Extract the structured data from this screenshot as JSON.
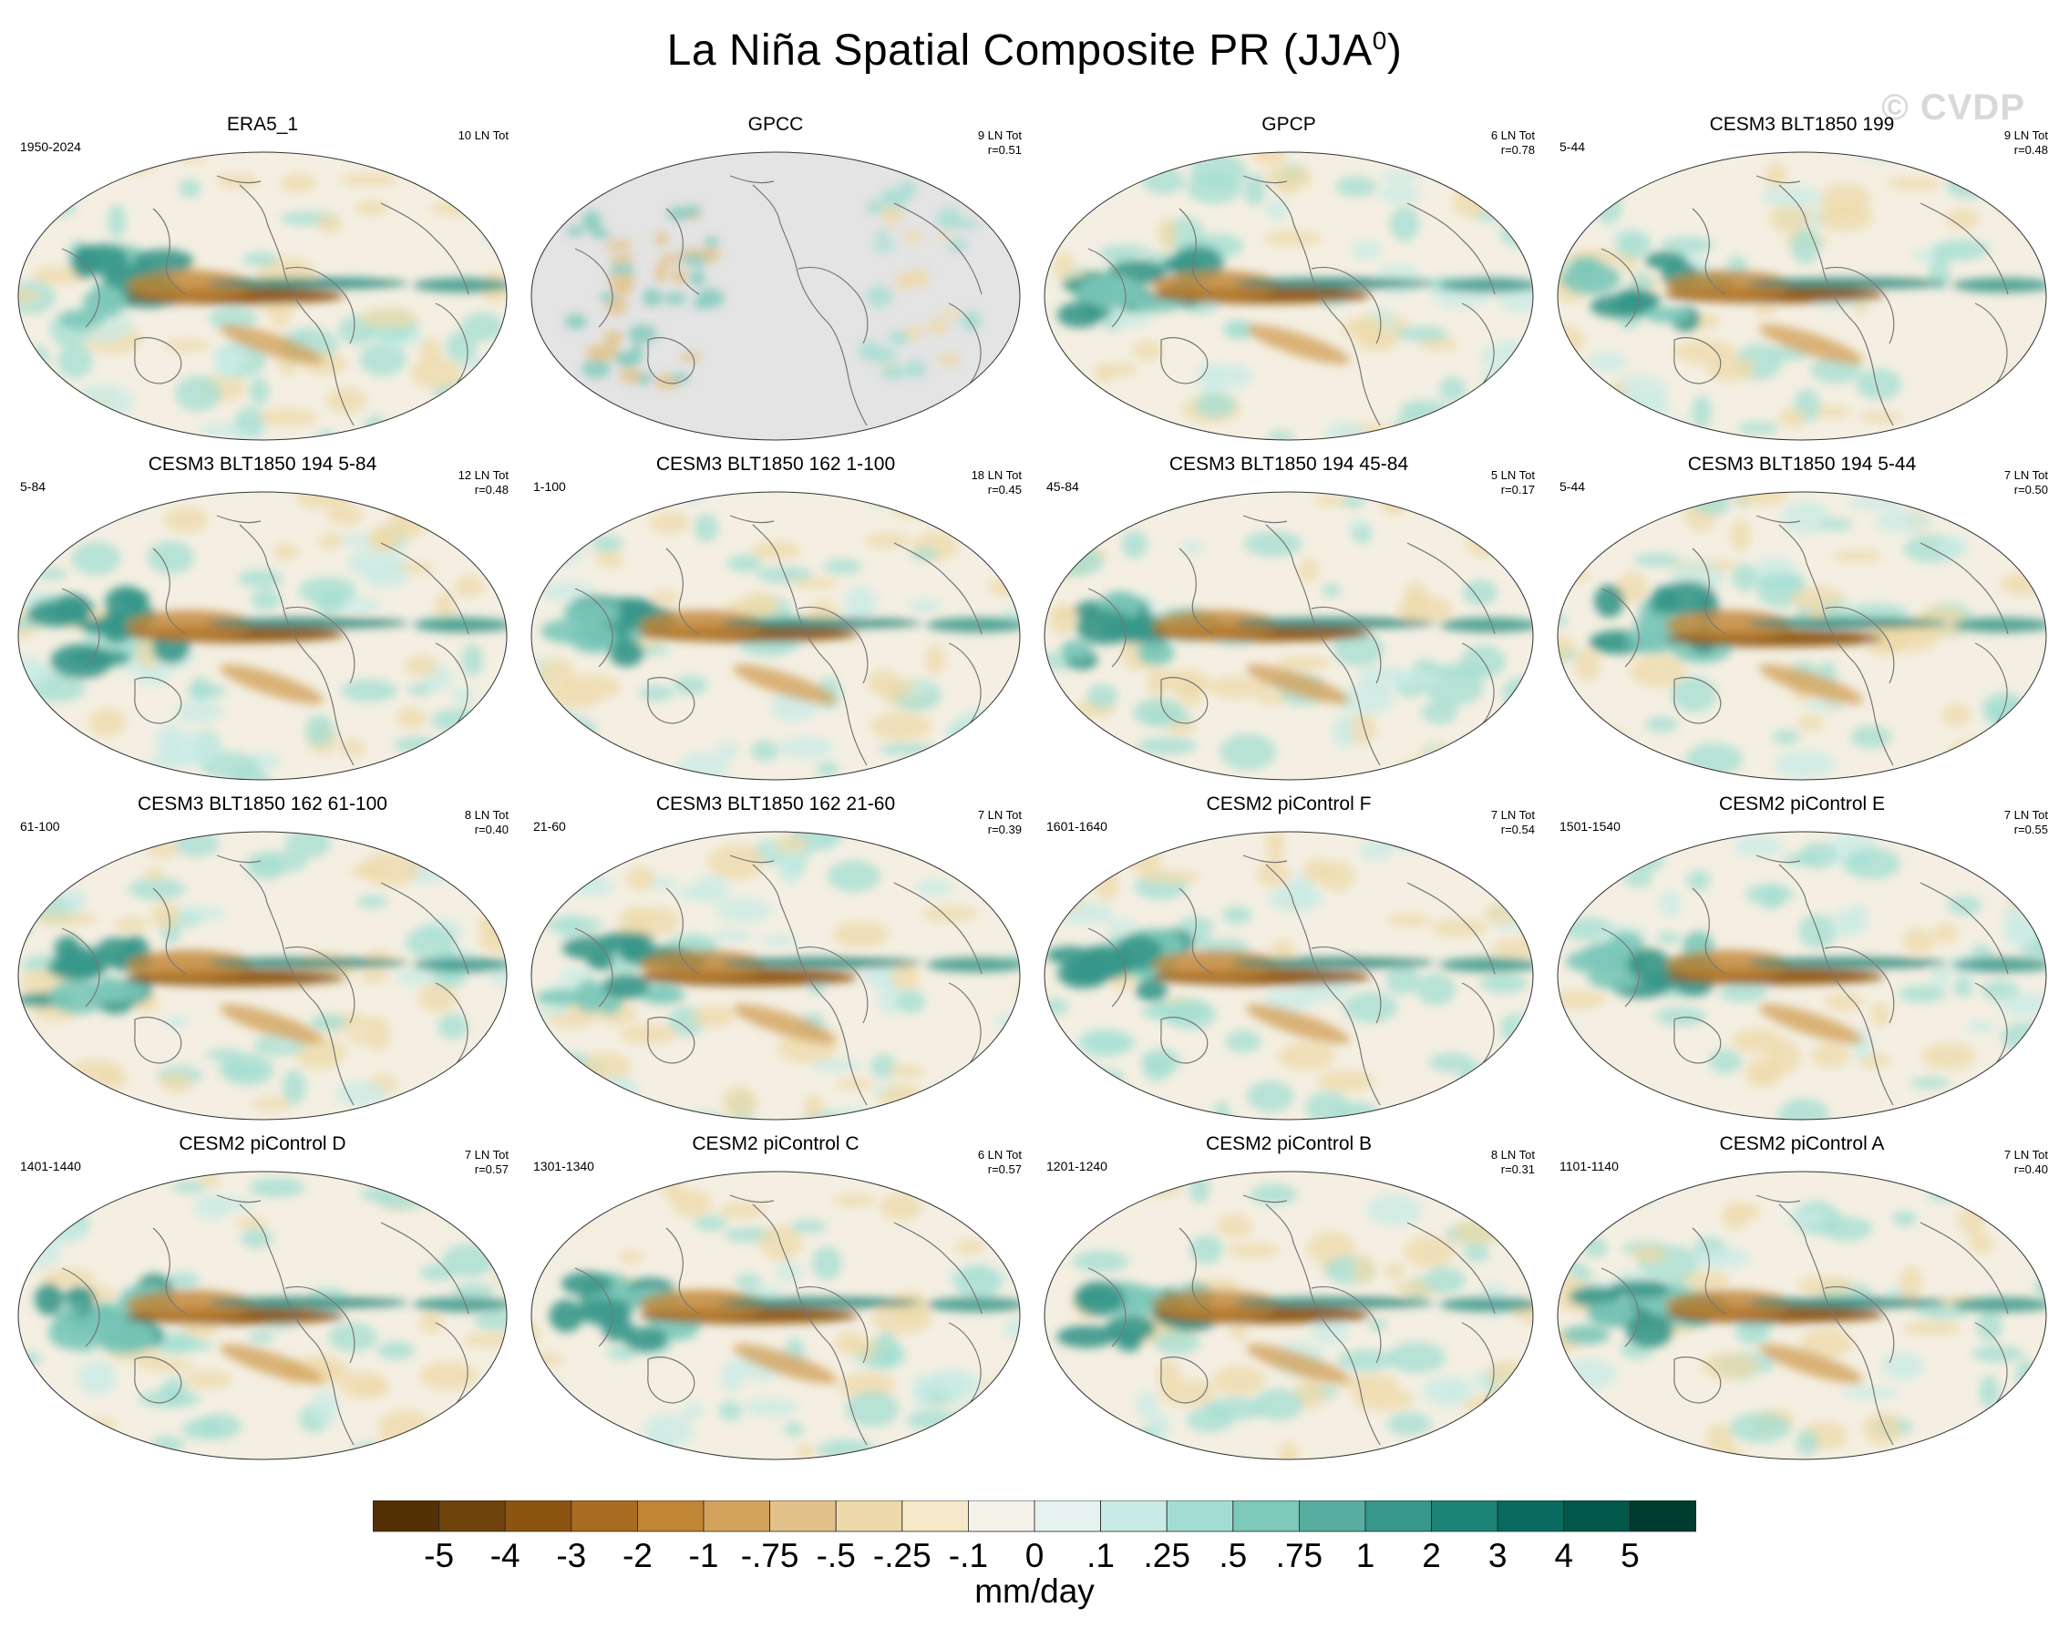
{
  "title": "La Niña Spatial Composite PR (JJA",
  "title_sup": "0",
  "title_close": ")",
  "watermark": "© CVDP",
  "panels": [
    {
      "title": "ERA5_1",
      "left": "1950-2024",
      "right1": "10 LN Tot",
      "right2": "",
      "style": "obs"
    },
    {
      "title": "GPCC",
      "left": "",
      "right1": "9 LN Tot",
      "right2": "r=0.51",
      "style": "gpcc"
    },
    {
      "title": "GPCP",
      "left": "",
      "right1": "6 LN Tot",
      "right2": "r=0.78",
      "style": "obs"
    },
    {
      "title": "CESM3 BLT1850 199",
      "left": "5-44",
      "right1": "9 LN Tot",
      "right2": "r=0.48",
      "style": "model"
    },
    {
      "title": "CESM3 BLT1850 194 5-84",
      "left": "5-84",
      "right1": "12 LN Tot",
      "right2": "r=0.48",
      "style": "model"
    },
    {
      "title": "CESM3 BLT1850 162 1-100",
      "left": "1-100",
      "right1": "18 LN Tot",
      "right2": "r=0.45",
      "style": "model"
    },
    {
      "title": "CESM3 BLT1850 194 45-84",
      "left": "45-84",
      "right1": "5 LN Tot",
      "right2": "r=0.17",
      "style": "model"
    },
    {
      "title": "CESM3 BLT1850 194 5-44",
      "left": "5-44",
      "right1": "7 LN Tot",
      "right2": "r=0.50",
      "style": "model"
    },
    {
      "title": "CESM3 BLT1850 162 61-100",
      "left": "61-100",
      "right1": "8 LN Tot",
      "right2": "r=0.40",
      "style": "model"
    },
    {
      "title": "CESM3 BLT1850 162 21-60",
      "left": "21-60",
      "right1": "7 LN Tot",
      "right2": "r=0.39",
      "style": "model"
    },
    {
      "title": "CESM2 piControl F",
      "left": "1601-1640",
      "right1": "7 LN Tot",
      "right2": "r=0.54",
      "style": "model"
    },
    {
      "title": "CESM2 piControl E",
      "left": "1501-1540",
      "right1": "7 LN Tot",
      "right2": "r=0.55",
      "style": "model"
    },
    {
      "title": "CESM2 piControl D",
      "left": "1401-1440",
      "right1": "7 LN Tot",
      "right2": "r=0.57",
      "style": "model"
    },
    {
      "title": "CESM2 piControl C",
      "left": "1301-1340",
      "right1": "6 LN Tot",
      "right2": "r=0.57",
      "style": "model"
    },
    {
      "title": "CESM2 piControl B",
      "left": "1201-1240",
      "right1": "8 LN Tot",
      "right2": "r=0.31",
      "style": "model"
    },
    {
      "title": "CESM2 piControl A",
      "left": "1101-1140",
      "right1": "7 LN Tot",
      "right2": "r=0.40",
      "style": "model"
    }
  ],
  "colorbar": {
    "colors": [
      "#543005",
      "#6f430b",
      "#8c5410",
      "#a86b1f",
      "#c08535",
      "#d3a35c",
      "#e2c289",
      "#eed9aa",
      "#f5e9c9",
      "#f5f2ea",
      "#e6f2f0",
      "#c8ebe5",
      "#a3ddd2",
      "#7cc8b9",
      "#57ad9f",
      "#36978a",
      "#1d8276",
      "#096b5f",
      "#01574a",
      "#003c30"
    ],
    "labels": [
      "-5",
      "-4",
      "-3",
      "-2",
      "-1",
      "-.75",
      "-.5",
      "-.25",
      "-.1",
      "0",
      ".1",
      ".25",
      ".5",
      ".75",
      "1",
      "2",
      "3",
      "4",
      "5"
    ],
    "units": "mm/day"
  }
}
